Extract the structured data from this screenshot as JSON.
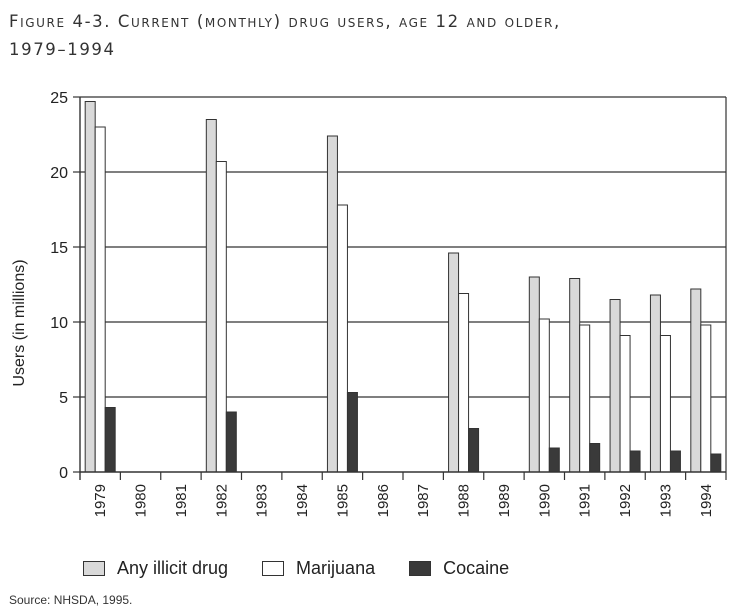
{
  "title": {
    "line1": "Figure 4-3. Current (monthly) drug users, age 12 and older,",
    "line2": "1979–1994"
  },
  "source": "Source: NHSDA, 1995.",
  "colors": {
    "any_illicit": "#d9d9d9",
    "marijuana": "#ffffff",
    "cocaine": "#3a3a3a",
    "grid": "#333333",
    "background": "#ffffff"
  },
  "chart_data": {
    "type": "bar",
    "title": "Current (monthly) drug users, age 12 and older, 1979–1994",
    "xlabel": "",
    "ylabel": "Users (in millions)",
    "ylim": [
      0,
      25
    ],
    "yticks": [
      0,
      5,
      10,
      15,
      20,
      25
    ],
    "grid": true,
    "legend_position": "bottom",
    "categories": [
      "1979",
      "1980",
      "1981",
      "1982",
      "1983",
      "1984",
      "1985",
      "1986",
      "1987",
      "1988",
      "1989",
      "1990",
      "1991",
      "1992",
      "1993",
      "1994"
    ],
    "series": [
      {
        "name": "Any illicit drug",
        "values": [
          24.7,
          null,
          null,
          23.5,
          null,
          null,
          22.4,
          null,
          null,
          14.6,
          null,
          13.0,
          12.9,
          11.5,
          11.8,
          12.2
        ]
      },
      {
        "name": "Marijuana",
        "values": [
          23.0,
          null,
          null,
          20.7,
          null,
          null,
          17.8,
          null,
          null,
          11.9,
          null,
          10.2,
          9.8,
          9.1,
          9.1,
          9.8
        ]
      },
      {
        "name": "Cocaine",
        "values": [
          4.3,
          null,
          null,
          4.0,
          null,
          null,
          5.3,
          null,
          null,
          2.9,
          null,
          1.6,
          1.9,
          1.4,
          1.4,
          1.2
        ]
      }
    ]
  }
}
